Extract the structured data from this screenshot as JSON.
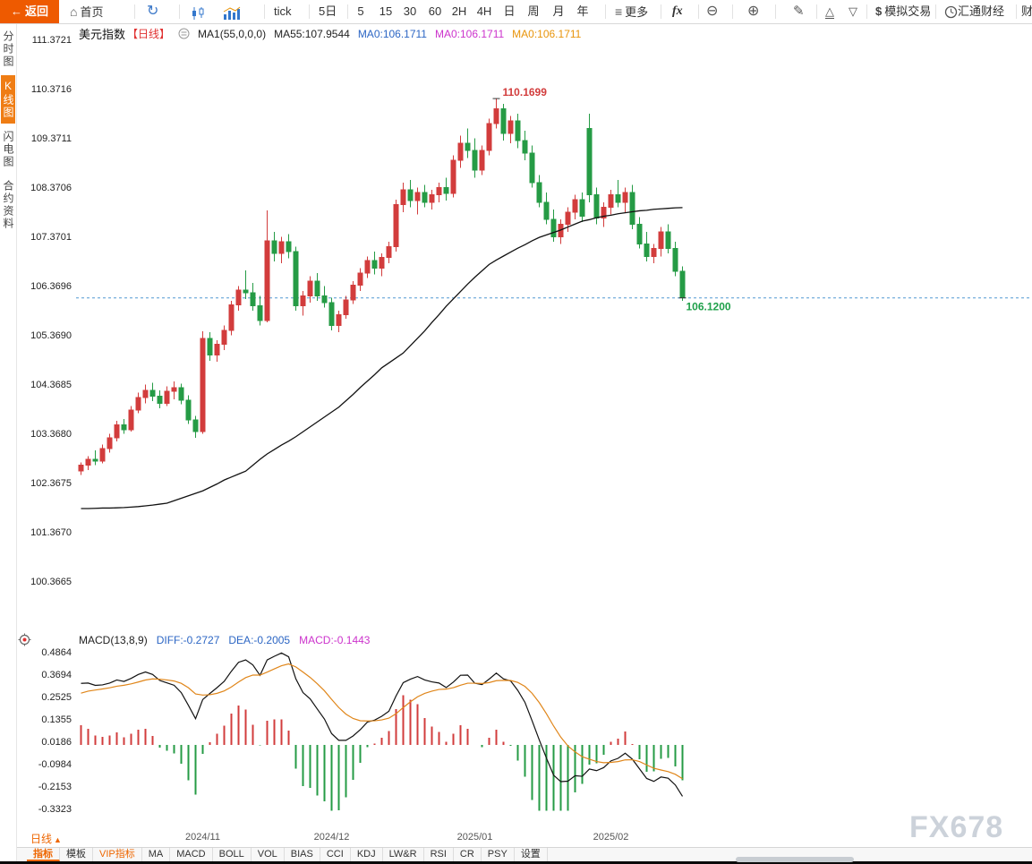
{
  "toolbar": {
    "back_label": "返回",
    "home_label": "首页",
    "tick_label": "tick",
    "five_day_label": "5日",
    "periods": [
      "5",
      "15",
      "30",
      "60",
      "2H",
      "4H",
      "日",
      "周",
      "月",
      "年"
    ],
    "more_label": "更多",
    "fx_label": "fx",
    "sim_trade_label": "模拟交易",
    "huitong_label": "汇通财经",
    "edge_label": "财"
  },
  "sidebar": {
    "items": [
      {
        "label": "分时图",
        "active": false
      },
      {
        "label": "K线图",
        "active": true
      },
      {
        "label": "闪电图",
        "active": false
      },
      {
        "label": "合约资料",
        "active": false
      }
    ]
  },
  "chart_header": {
    "symbol": "美元指数",
    "period_tag": "【日线】",
    "ma_param": "MA1(55,0,0,0)",
    "ma55": "MA55:107.9544",
    "ma_values": [
      "MA0:106.1711",
      "MA0:106.1711",
      "MA0:106.1711"
    ]
  },
  "macd_header": {
    "title": "MACD(13,8,9)",
    "diff": "DIFF:-0.2727",
    "dea": "DEA:-0.2005",
    "macd": "MACD:-0.1443"
  },
  "bottom": {
    "period_selector": "日线",
    "tabs": [
      {
        "label": "指标"
      },
      {
        "label": "模板"
      },
      {
        "label": "VIP指标"
      },
      {
        "label": "MA"
      },
      {
        "label": "MACD"
      },
      {
        "label": "BOLL"
      },
      {
        "label": "VOL"
      },
      {
        "label": "BIAS"
      },
      {
        "label": "CCI"
      },
      {
        "label": "KDJ"
      },
      {
        "label": "LW&R"
      },
      {
        "label": "RSI"
      },
      {
        "label": "CR"
      },
      {
        "label": "PSY"
      },
      {
        "label": "设置"
      }
    ]
  },
  "watermark": "FX678",
  "colors": {
    "up": "#d23c3c",
    "down": "#259b45",
    "ma55": "#111111",
    "diff_line": "#111111",
    "dea_line": "#e0861a",
    "dashed_line": "#3388cc",
    "axis_text": "#222222",
    "month_text": "#555555",
    "annotation_high": "#d23c3c",
    "annotation_last": "#1fa04a"
  },
  "chart_data": {
    "type": "candlestick",
    "title": "美元指数 日线",
    "price_axis": {
      "labels": [
        "111.3721",
        "110.3716",
        "109.3711",
        "108.3706",
        "107.3701",
        "106.3696",
        "105.3690",
        "104.3685",
        "103.3680",
        "102.3675",
        "101.3670",
        "100.3665"
      ],
      "top_value": 111.3721,
      "step": 1.0005
    },
    "macd_axis": {
      "labels": [
        "0.4864",
        "0.3694",
        "0.2525",
        "0.1355",
        "0.0186",
        "-0.0984",
        "-0.2153",
        "-0.3323"
      ],
      "top_value": 0.4864,
      "step": 0.11695
    },
    "x_axis": {
      "months": [
        {
          "label": "2024/11",
          "index": 17
        },
        {
          "label": "2024/12",
          "index": 35
        },
        {
          "label": "2025/01",
          "index": 55
        },
        {
          "label": "2025/02",
          "index": 74
        }
      ]
    },
    "annotations": {
      "high_label": "110.1699",
      "high_value": 110.1699,
      "last_label": "106.1200",
      "last_price": 106.12
    },
    "ma55_last": 107.9544,
    "candles": [
      [
        102.6,
        102.78,
        102.52,
        102.72
      ],
      [
        102.72,
        102.9,
        102.62,
        102.84
      ],
      [
        102.84,
        103.02,
        102.72,
        102.8
      ],
      [
        102.8,
        103.14,
        102.76,
        103.06
      ],
      [
        103.06,
        103.36,
        102.98,
        103.28
      ],
      [
        103.28,
        103.62,
        103.2,
        103.54
      ],
      [
        103.54,
        103.66,
        103.36,
        103.44
      ],
      [
        103.44,
        103.92,
        103.4,
        103.84
      ],
      [
        103.84,
        104.2,
        103.78,
        104.1
      ],
      [
        104.1,
        104.36,
        103.98,
        104.24
      ],
      [
        104.24,
        104.4,
        104.02,
        104.12
      ],
      [
        104.12,
        104.24,
        103.88,
        103.98
      ],
      [
        103.98,
        104.32,
        103.92,
        104.22
      ],
      [
        104.22,
        104.42,
        104.06,
        104.3
      ],
      [
        104.3,
        104.38,
        103.96,
        104.04
      ],
      [
        104.04,
        104.14,
        103.56,
        103.64
      ],
      [
        103.64,
        103.72,
        103.28,
        103.4
      ],
      [
        103.4,
        105.44,
        103.36,
        105.3
      ],
      [
        105.3,
        105.42,
        104.84,
        104.96
      ],
      [
        104.96,
        105.26,
        104.82,
        105.18
      ],
      [
        105.18,
        105.56,
        105.06,
        105.46
      ],
      [
        105.46,
        106.06,
        105.36,
        105.98
      ],
      [
        105.98,
        106.36,
        105.86,
        106.28
      ],
      [
        106.28,
        106.68,
        106.1,
        106.22
      ],
      [
        106.22,
        106.42,
        105.86,
        105.96
      ],
      [
        105.96,
        106.16,
        105.56,
        105.66
      ],
      [
        105.66,
        107.9,
        105.62,
        107.28
      ],
      [
        107.28,
        107.46,
        106.86,
        107.02
      ],
      [
        107.02,
        107.36,
        106.82,
        107.26
      ],
      [
        107.26,
        107.42,
        106.92,
        107.06
      ],
      [
        107.06,
        107.16,
        105.86,
        105.96
      ],
      [
        105.96,
        106.26,
        105.76,
        106.16
      ],
      [
        106.16,
        106.56,
        106.02,
        106.46
      ],
      [
        106.46,
        106.62,
        106.06,
        106.16
      ],
      [
        106.16,
        106.36,
        105.92,
        106.02
      ],
      [
        106.02,
        106.12,
        105.46,
        105.56
      ],
      [
        105.56,
        105.86,
        105.42,
        105.78
      ],
      [
        105.78,
        106.16,
        105.7,
        106.08
      ],
      [
        106.08,
        106.46,
        106.0,
        106.38
      ],
      [
        106.38,
        106.72,
        106.26,
        106.62
      ],
      [
        106.62,
        106.96,
        106.52,
        106.88
      ],
      [
        106.88,
        107.06,
        106.6,
        106.72
      ],
      [
        106.72,
        107.02,
        106.56,
        106.94
      ],
      [
        106.94,
        107.26,
        106.82,
        107.16
      ],
      [
        107.16,
        108.12,
        107.06,
        108.02
      ],
      [
        108.02,
        108.46,
        107.86,
        108.32
      ],
      [
        108.32,
        108.52,
        107.96,
        108.1
      ],
      [
        108.1,
        108.36,
        107.82,
        108.26
      ],
      [
        108.26,
        108.42,
        107.96,
        108.06
      ],
      [
        108.06,
        108.32,
        107.92,
        108.22
      ],
      [
        108.22,
        108.46,
        108.06,
        108.36
      ],
      [
        108.36,
        108.56,
        108.1,
        108.24
      ],
      [
        108.24,
        109.02,
        108.16,
        108.92
      ],
      [
        108.92,
        109.42,
        108.76,
        109.26
      ],
      [
        109.26,
        109.56,
        108.96,
        109.12
      ],
      [
        109.12,
        109.36,
        108.56,
        108.72
      ],
      [
        108.72,
        109.22,
        108.62,
        109.12
      ],
      [
        109.12,
        109.76,
        109.02,
        109.66
      ],
      [
        109.66,
        110.1699,
        109.56,
        109.96
      ],
      [
        109.96,
        110.06,
        109.32,
        109.46
      ],
      [
        109.46,
        109.82,
        109.26,
        109.72
      ],
      [
        109.72,
        109.86,
        109.16,
        109.32
      ],
      [
        109.32,
        109.52,
        108.92,
        109.06
      ],
      [
        109.06,
        109.22,
        108.36,
        108.46
      ],
      [
        108.46,
        108.62,
        107.96,
        108.06
      ],
      [
        108.06,
        108.26,
        107.62,
        107.72
      ],
      [
        107.72,
        107.92,
        107.26,
        107.36
      ],
      [
        107.36,
        107.72,
        107.22,
        107.62
      ],
      [
        107.62,
        107.96,
        107.46,
        107.86
      ],
      [
        107.86,
        108.22,
        107.72,
        108.12
      ],
      [
        108.12,
        108.26,
        107.66,
        107.78
      ],
      [
        109.56,
        109.86,
        108.06,
        108.22
      ],
      [
        108.22,
        108.36,
        107.62,
        107.74
      ],
      [
        107.74,
        108.06,
        107.56,
        107.96
      ],
      [
        107.96,
        108.32,
        107.82,
        108.22
      ],
      [
        108.22,
        108.52,
        107.96,
        108.06
      ],
      [
        108.06,
        108.36,
        107.86,
        108.26
      ],
      [
        108.26,
        108.42,
        107.52,
        107.62
      ],
      [
        107.62,
        107.76,
        107.12,
        107.22
      ],
      [
        107.22,
        107.46,
        106.86,
        106.96
      ],
      [
        106.96,
        107.22,
        106.82,
        107.12
      ],
      [
        107.12,
        107.56,
        106.96,
        107.46
      ],
      [
        107.46,
        107.62,
        107.02,
        107.12
      ],
      [
        107.12,
        107.26,
        106.56,
        106.66
      ],
      [
        106.66,
        106.76,
        106.06,
        106.12
      ]
    ],
    "ma55": [
      101.84,
      101.84,
      101.845,
      101.85,
      101.85,
      101.855,
      101.86,
      101.87,
      101.88,
      101.895,
      101.91,
      101.93,
      101.95,
      102.0,
      102.05,
      102.1,
      102.15,
      102.2,
      102.27,
      102.34,
      102.42,
      102.48,
      102.54,
      102.6,
      102.72,
      102.84,
      102.95,
      103.04,
      103.13,
      103.21,
      103.3,
      103.4,
      103.5,
      103.6,
      103.7,
      103.8,
      103.9,
      104.03,
      104.16,
      104.3,
      104.43,
      104.56,
      104.7,
      104.8,
      104.9,
      105.0,
      105.15,
      105.3,
      105.45,
      105.62,
      105.78,
      105.95,
      106.1,
      106.25,
      106.4,
      106.54,
      106.67,
      106.8,
      106.89,
      106.97,
      107.05,
      107.13,
      107.2,
      107.28,
      107.35,
      107.4,
      107.45,
      107.5,
      107.56,
      107.62,
      107.68,
      107.71,
      107.75,
      107.78,
      107.8,
      107.83,
      107.85,
      107.87,
      107.89,
      107.9,
      107.92,
      107.93,
      107.94,
      107.95,
      107.9544
    ],
    "macd": {
      "params": "13,8,9",
      "diff_last": -0.2727,
      "dea_last": -0.2005,
      "macd_last": -0.1443,
      "pre_closes": [
        100.25,
        100.45,
        100.62,
        100.8,
        101.0,
        101.18,
        101.36,
        101.55,
        101.74,
        101.92,
        102.1,
        102.25,
        102.38,
        102.48,
        102.55
      ]
    }
  }
}
